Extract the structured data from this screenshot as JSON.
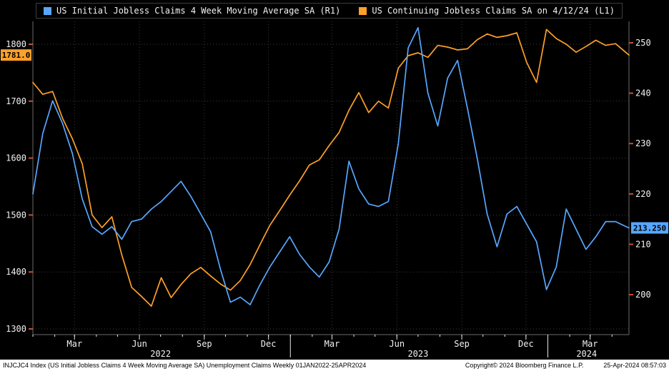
{
  "legend": {
    "items": [
      {
        "label": "US Initial Jobless Claims 4 Week Moving Average SA (R1)",
        "color": "#57a7ff"
      },
      {
        "label": "US Continuing Jobless Claims SA on 4/12/24 (L1)",
        "color": "#ffa028"
      }
    ]
  },
  "footer": {
    "left": "INJCJC4 Index (US Initial Jobless Claims 4 Week Moving Average SA) Unemployment Claims  Weekly 01JAN2022-25APR2024",
    "center": "Copyright© 2024 Bloomberg Finance L.P.",
    "right": "25-Apr-2024 08:57:03"
  },
  "colors": {
    "initial_claims_line": "#57a7ff",
    "continuing_claims_line": "#ffa028",
    "grid": "#3a3a3a",
    "frame": "#6a6a6a",
    "axis_tick": "#c8502e",
    "axis_label": "#f2f2f2",
    "x_tick": "#e8e8e8"
  },
  "chart_data": {
    "type": "line",
    "title": "US Initial Jobless Claims 4 Week Moving Average SA vs US Continuing Jobless Claims SA",
    "x_range": [
      "2022-01-01",
      "2024-04-25"
    ],
    "x_dates": [
      "2022-01-01",
      "2022-01-15",
      "2022-01-29",
      "2022-02-12",
      "2022-02-26",
      "2022-03-12",
      "2022-03-26",
      "2022-04-09",
      "2022-04-23",
      "2022-05-07",
      "2022-05-21",
      "2022-06-04",
      "2022-06-18",
      "2022-07-02",
      "2022-07-16",
      "2022-07-30",
      "2022-08-13",
      "2022-08-27",
      "2022-09-10",
      "2022-09-24",
      "2022-10-08",
      "2022-10-22",
      "2022-11-05",
      "2022-11-19",
      "2022-12-03",
      "2022-12-17",
      "2022-12-31",
      "2023-01-14",
      "2023-01-28",
      "2023-02-11",
      "2023-02-25",
      "2023-03-11",
      "2023-03-25",
      "2023-04-08",
      "2023-04-22",
      "2023-05-06",
      "2023-05-20",
      "2023-06-03",
      "2023-06-17",
      "2023-07-01",
      "2023-07-15",
      "2023-07-29",
      "2023-08-12",
      "2023-08-26",
      "2023-09-09",
      "2023-09-23",
      "2023-10-07",
      "2023-10-21",
      "2023-11-04",
      "2023-11-18",
      "2023-12-02",
      "2023-12-16",
      "2023-12-30",
      "2024-01-13",
      "2024-01-27",
      "2024-02-10",
      "2024-02-24",
      "2024-03-09",
      "2024-03-23",
      "2024-04-06",
      "2024-04-25"
    ],
    "series": [
      {
        "name": "US Continuing Jobless Claims SA",
        "axis": "left",
        "color": "#ffa028",
        "units": "thousands",
        "values": [
          1733,
          1712,
          1717,
          1670,
          1634,
          1590,
          1500,
          1478,
          1497,
          1430,
          1373,
          1357,
          1340,
          1390,
          1355,
          1378,
          1397,
          1408,
          1393,
          1379,
          1368,
          1385,
          1413,
          1448,
          1482,
          1508,
          1535,
          1560,
          1588,
          1597,
          1622,
          1645,
          1684,
          1715,
          1680,
          1700,
          1688,
          1758,
          1780,
          1785,
          1777,
          1798,
          1795,
          1790,
          1792,
          1808,
          1818,
          1812,
          1815,
          1820,
          1768,
          1733,
          1826,
          1810,
          1800,
          1786,
          1796,
          1807,
          1798,
          1801,
          1781
        ]
      },
      {
        "name": "US Initial Jobless Claims 4 Week Moving Average SA",
        "axis": "right",
        "color": "#57a7ff",
        "units": "thousands",
        "values": [
          220,
          232,
          238.5,
          234,
          228,
          219,
          213.5,
          212,
          213.5,
          211,
          214.5,
          215,
          217,
          218.5,
          220.5,
          222.5,
          219.5,
          216,
          212.5,
          205,
          198.5,
          199.5,
          198,
          202,
          205.5,
          208.5,
          211.5,
          208,
          205.5,
          203.5,
          206.5,
          213,
          226.5,
          221,
          218,
          217.5,
          218.5,
          230,
          249,
          253,
          240,
          233.5,
          243,
          246.5,
          237,
          227,
          216,
          209.5,
          216,
          217.5,
          214,
          210.5,
          201,
          205.5,
          217,
          213,
          209,
          211.5,
          214.5,
          214.5,
          213.25
        ]
      }
    ],
    "left_axis": {
      "min": 1300,
      "max": 1800,
      "ticks": [
        1800,
        1700,
        1600,
        1500,
        1400,
        1300
      ],
      "last_value": 1781.0,
      "last_value_label": "1781.0"
    },
    "right_axis": {
      "min": 200,
      "max": 250,
      "ticks": [
        250,
        240,
        230,
        220,
        210,
        200
      ],
      "last_value": 213.25,
      "last_value_label": "213.250"
    },
    "x_ticks": [
      {
        "label": "Mar",
        "date": "2022-03-01"
      },
      {
        "label": "Jun",
        "date": "2022-06-01"
      },
      {
        "label": "Sep",
        "date": "2022-09-01"
      },
      {
        "label": "Dec",
        "date": "2022-12-01"
      },
      {
        "label": "Mar",
        "date": "2023-03-01"
      },
      {
        "label": "Jun",
        "date": "2023-06-01"
      },
      {
        "label": "Sep",
        "date": "2023-09-01"
      },
      {
        "label": "Dec",
        "date": "2023-12-01"
      },
      {
        "label": "Mar",
        "date": "2024-03-01"
      }
    ],
    "year_labels": [
      {
        "label": "2022",
        "date": "2022-07-01"
      },
      {
        "label": "2023",
        "date": "2023-07-01"
      },
      {
        "label": "2024",
        "date": "2024-02-25"
      }
    ],
    "year_dividers": [
      "2023-01-01",
      "2024-01-01"
    ],
    "legend_position": "top",
    "grid": true
  }
}
